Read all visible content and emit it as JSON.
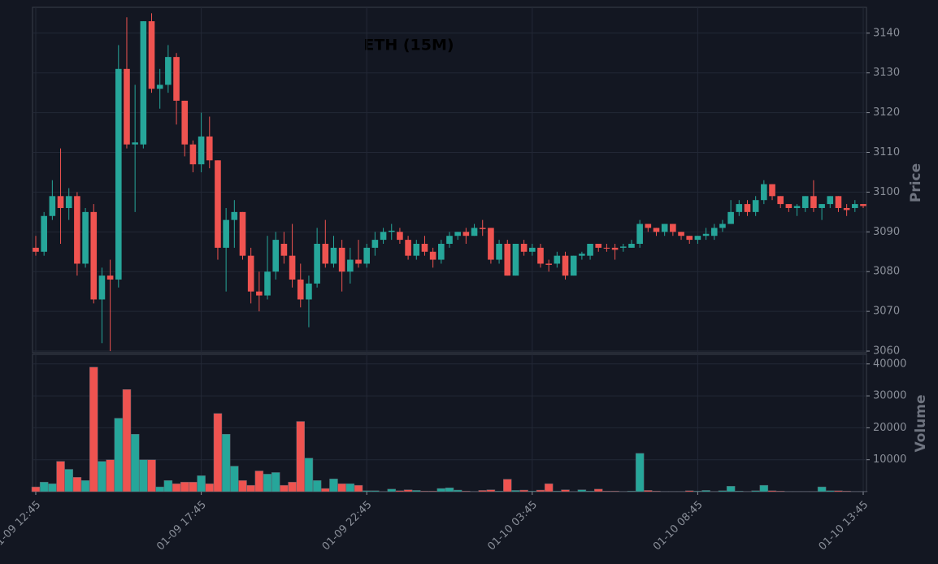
{
  "chart_data": {
    "type": "candlestick",
    "title": "ETH (15M)",
    "categories": [
      "01-09 12:45",
      null,
      null,
      null,
      null,
      null,
      null,
      null,
      null,
      null,
      null,
      null,
      null,
      null,
      null,
      null,
      null,
      null,
      null,
      null,
      "01-09 17:45",
      null,
      null,
      null,
      null,
      null,
      null,
      null,
      null,
      null,
      null,
      null,
      null,
      null,
      null,
      null,
      null,
      null,
      null,
      null,
      "01-09 22:45",
      null,
      null,
      null,
      null,
      null,
      null,
      null,
      null,
      null,
      null,
      null,
      null,
      null,
      null,
      null,
      null,
      null,
      null,
      null,
      "01-10 03:45",
      null,
      null,
      null,
      null,
      null,
      null,
      null,
      null,
      null,
      null,
      null,
      null,
      null,
      null,
      null,
      null,
      null,
      null,
      null,
      "01-10 08:45",
      null,
      null,
      null,
      null,
      null,
      null,
      null,
      null,
      null,
      null,
      null,
      null,
      null,
      null,
      null,
      null,
      null,
      null,
      null,
      "01-10 13:45"
    ],
    "open": [
      3086,
      3085,
      3094,
      3099,
      3096,
      3099,
      3082,
      3095,
      3073,
      3079,
      3078,
      3131,
      3112,
      3112,
      3143,
      3126,
      3127,
      3134,
      3123,
      3112,
      3107,
      3114,
      3108,
      3086,
      3093,
      3095,
      3084,
      3075,
      3074,
      3080,
      3087,
      3084,
      3078,
      3073,
      3077,
      3087,
      3082,
      3086,
      3080,
      3083,
      3082,
      3086,
      3088,
      3090,
      3090,
      3088,
      3084,
      3087,
      3085,
      3083,
      3087,
      3089,
      3090,
      3089,
      3091,
      3091,
      3083,
      3087,
      3079,
      3087,
      3085,
      3086,
      3082,
      3082,
      3084,
      3079,
      3084,
      3084,
      3087,
      3086,
      3086,
      3086,
      3086,
      3087,
      3092,
      3091,
      3090,
      3092,
      3090,
      3089,
      3088,
      3089,
      3089,
      3091,
      3092,
      3095,
      3097,
      3095,
      3098,
      3102,
      3099,
      3097,
      3096,
      3096,
      3099,
      3096,
      3097,
      3099,
      3096,
      3096,
      3097
    ],
    "high": [
      3089,
      3095,
      3103,
      3111,
      3101,
      3100,
      3096,
      3097,
      3081,
      3083,
      3137,
      3144,
      3127,
      3143,
      3145,
      3131,
      3137,
      3135,
      3123,
      3113,
      3120,
      3119,
      3108,
      3096,
      3098,
      3095,
      3086,
      3080,
      3089,
      3090,
      3090,
      3092,
      3082,
      3079,
      3091,
      3093,
      3089,
      3088,
      3086,
      3088,
      3087,
      3090,
      3091,
      3092,
      3091,
      3089,
      3088,
      3089,
      3086,
      3088,
      3090,
      3090,
      3091,
      3092,
      3093,
      3091,
      3088,
      3088,
      3087,
      3088,
      3087,
      3087,
      3083,
      3085,
      3085,
      3084,
      3085,
      3087,
      3087,
      3087,
      3087,
      3087,
      3088,
      3093,
      3092,
      3091,
      3092,
      3092,
      3090,
      3089,
      3089,
      3091,
      3092,
      3093,
      3098,
      3098,
      3098,
      3099,
      3103,
      3102,
      3099,
      3097,
      3097,
      3099,
      3103,
      3097,
      3099,
      3099,
      3097,
      3098,
      3097
    ],
    "low": [
      3084,
      3084,
      3093,
      3087,
      3093,
      3079,
      3081,
      3072,
      3062,
      3060,
      3076,
      3111,
      3095,
      3111,
      3125,
      3121,
      3125,
      3117,
      3109,
      3105,
      3105,
      3106,
      3083,
      3075,
      3086,
      3083,
      3072,
      3070,
      3073,
      3078,
      3082,
      3076,
      3071,
      3066,
      3076,
      3081,
      3081,
      3075,
      3077,
      3081,
      3081,
      3084,
      3087,
      3088,
      3087,
      3083,
      3083,
      3084,
      3081,
      3082,
      3086,
      3088,
      3087,
      3089,
      3089,
      3082,
      3082,
      3079,
      3079,
      3084,
      3084,
      3081,
      3080,
      3081,
      3078,
      3079,
      3083,
      3083,
      3085,
      3085,
      3083,
      3085,
      3086,
      3086,
      3090,
      3089,
      3089,
      3089,
      3088,
      3087,
      3087,
      3088,
      3088,
      3090,
      3092,
      3094,
      3094,
      3094,
      3097,
      3098,
      3096,
      3095,
      3094,
      3095,
      3095,
      3093,
      3096,
      3095,
      3094,
      3095,
      3096
    ],
    "close": [
      3085,
      3094,
      3099,
      3096,
      3099,
      3082,
      3095,
      3073,
      3079,
      3078,
      3131,
      3112,
      3112.5,
      3143,
      3126,
      3127,
      3134,
      3123,
      3112,
      3107,
      3114,
      3108,
      3086,
      3093,
      3095,
      3084,
      3075,
      3074,
      3080,
      3088,
      3084,
      3078,
      3073,
      3077,
      3087,
      3082,
      3086,
      3080,
      3083,
      3082,
      3086,
      3088,
      3090,
      3090.3,
      3088,
      3084,
      3087,
      3085,
      3083,
      3087,
      3089,
      3090,
      3089,
      3091,
      3090.7,
      3083,
      3087,
      3079,
      3087,
      3085,
      3086,
      3082,
      3081.7,
      3084,
      3079,
      3084,
      3084.5,
      3087,
      3086,
      3085.9,
      3085.5,
      3086.3,
      3087,
      3092,
      3091,
      3090,
      3092,
      3090,
      3089,
      3088,
      3089,
      3089.5,
      3091,
      3092,
      3095,
      3097,
      3095,
      3098,
      3102,
      3099,
      3097,
      3096,
      3096.5,
      3099,
      3096,
      3097,
      3099,
      3096,
      3095.5,
      3097,
      3096.5
    ],
    "ylabel": "Price",
    "ylim": [
      3059.6,
      3146.5
    ],
    "yticks": [
      3060,
      3070,
      3080,
      3090,
      3100,
      3110,
      3120,
      3130,
      3140
    ],
    "up_color": "#26a69a",
    "down_color": "#ef5350",
    "grid": true,
    "volume": {
      "ylabel": "Volume",
      "ylim": [
        0,
        43000
      ],
      "yticks": [
        10000,
        20000,
        30000,
        40000
      ],
      "values": [
        1500,
        3000,
        2500,
        9500,
        7000,
        4500,
        3500,
        39000,
        9500,
        10000,
        23000,
        32000,
        18000,
        10000,
        10000,
        1500,
        3500,
        2500,
        3000,
        3000,
        5000,
        2500,
        24500,
        18000,
        8000,
        3500,
        2000,
        6500,
        5500,
        6000,
        2000,
        3000,
        22000,
        10500,
        3500,
        1000,
        4000,
        2500,
        2500,
        2000,
        300,
        300,
        100,
        800,
        300,
        600,
        400,
        200,
        200,
        1000,
        1200,
        500,
        200,
        100,
        400,
        600,
        200,
        3900,
        400,
        500,
        200,
        500,
        2500,
        200,
        600,
        100,
        600,
        200,
        800,
        200,
        200,
        100,
        200,
        12000,
        400,
        200,
        100,
        100,
        100,
        300,
        200,
        400,
        100,
        300,
        1700,
        200,
        100,
        300,
        2000,
        300,
        200,
        100,
        100,
        100,
        100,
        1500,
        300,
        300,
        200,
        100,
        100
      ]
    }
  }
}
